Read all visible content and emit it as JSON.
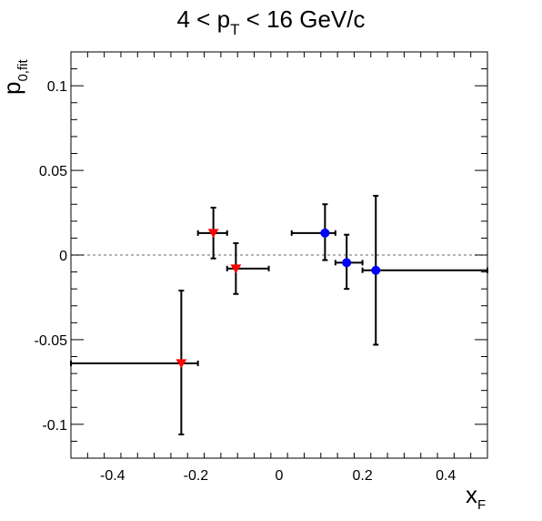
{
  "chart_data": {
    "type": "scatter",
    "title": {
      "prefix": "4 < p",
      "sub": "T",
      "suffix": " < 16 GeV/c"
    },
    "xlabel": {
      "main": "x",
      "sub": "F"
    },
    "ylabel": {
      "main": "p",
      "sub": "0,fit"
    },
    "xlim": [
      -0.5,
      0.5
    ],
    "ylim": [
      -0.12,
      0.12
    ],
    "x_ticks": [
      -0.4,
      -0.2,
      0,
      0.2,
      0.4
    ],
    "x_tick_labels": [
      "-0.4",
      "-0.2",
      "0",
      "0.2",
      "0.4"
    ],
    "y_ticks": [
      -0.1,
      -0.05,
      0,
      0.05,
      0.1
    ],
    "y_tick_labels": [
      "-0.1",
      "-0.05",
      "0",
      "0.05",
      "0.1"
    ],
    "reference_line_y": 0,
    "grid": false,
    "series": [
      {
        "marker": "triangle-down",
        "color": "#ff0000",
        "points": [
          {
            "x": -0.235,
            "y": -0.064,
            "x_lo": -0.5,
            "x_hi": -0.195,
            "y_lo": -0.106,
            "y_hi": -0.021
          },
          {
            "x": -0.158,
            "y": 0.013,
            "x_lo": -0.195,
            "x_hi": -0.125,
            "y_lo": -0.002,
            "y_hi": 0.028
          },
          {
            "x": -0.104,
            "y": -0.008,
            "x_lo": -0.125,
            "x_hi": -0.025,
            "y_lo": -0.023,
            "y_hi": 0.007
          }
        ]
      },
      {
        "marker": "circle",
        "color": "#0000ff",
        "points": [
          {
            "x": 0.11,
            "y": 0.013,
            "x_lo": 0.03,
            "x_hi": 0.135,
            "y_lo": -0.003,
            "y_hi": 0.03
          },
          {
            "x": 0.162,
            "y": -0.0045,
            "x_lo": 0.135,
            "x_hi": 0.2,
            "y_lo": -0.02,
            "y_hi": 0.012
          },
          {
            "x": 0.232,
            "y": -0.009,
            "x_lo": 0.2,
            "x_hi": 0.5,
            "y_lo": -0.053,
            "y_hi": 0.035
          }
        ]
      }
    ]
  }
}
